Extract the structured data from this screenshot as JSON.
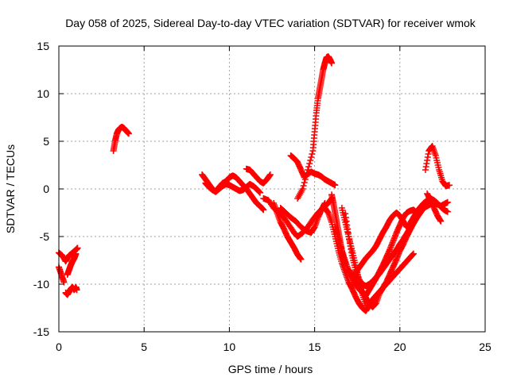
{
  "chart_data": {
    "type": "scatter",
    "title": "Day 058 of 2025, Sidereal Day-to-day VTEC variation (SDTVAR) for receiver wmok",
    "xlabel": "GPS time / hours",
    "ylabel": "SDTVAR / TECUs",
    "xlim": [
      0,
      25
    ],
    "ylim": [
      -15,
      15
    ],
    "xticks": [
      0,
      5,
      10,
      15,
      20,
      25
    ],
    "yticks": [
      -15,
      -10,
      -5,
      0,
      5,
      10,
      15
    ],
    "xtick_labels": [
      "0",
      "5",
      "10",
      "15",
      "20",
      "25"
    ],
    "ytick_labels": [
      "-15",
      "-10",
      "-5",
      "0",
      "5",
      "10",
      "15"
    ],
    "grid": true,
    "legend": "none",
    "marker": "+",
    "color": "#ff0000",
    "series": [
      {
        "x": [
          0.0,
          0.2,
          0.4,
          0.6,
          0.8,
          1.0,
          1.1
        ],
        "y": [
          -6.7,
          -7.0,
          -7.6,
          -7.0,
          -6.7,
          -6.4,
          -6.2
        ]
      },
      {
        "x": [
          0.0,
          0.15,
          0.3
        ],
        "y": [
          -8.2,
          -9.0,
          -9.8
        ]
      },
      {
        "x": [
          0.4,
          0.5,
          0.6,
          0.7,
          0.8,
          0.9,
          1.0,
          1.05
        ],
        "y": [
          -10.9,
          -11.1,
          -10.8,
          -10.5,
          -10.3,
          -10.6,
          -10.3,
          -10.6
        ]
      },
      {
        "x": [
          0.5,
          0.6,
          0.7,
          0.8,
          0.9,
          1.0
        ],
        "y": [
          -9.0,
          -8.5,
          -8.0,
          -7.6,
          -7.3,
          -6.8
        ]
      },
      {
        "x": [
          3.2,
          3.3,
          3.4,
          3.5,
          3.6,
          3.7,
          3.8,
          3.9,
          4.0,
          4.1
        ],
        "y": [
          4.0,
          5.0,
          5.8,
          6.2,
          6.4,
          6.5,
          6.4,
          6.2,
          6.0,
          5.8
        ]
      },
      {
        "x": [
          8.4,
          8.6,
          8.8,
          9.0,
          9.2,
          9.4,
          9.6,
          9.8,
          10.0,
          10.2,
          10.4,
          10.6,
          10.8,
          11.0,
          11.2,
          11.4,
          11.6,
          11.8,
          12.0
        ],
        "y": [
          1.5,
          1.0,
          0.5,
          0.0,
          -0.3,
          0.2,
          0.6,
          0.8,
          1.2,
          1.4,
          1.2,
          0.8,
          0.4,
          0.0,
          -0.5,
          -1.0,
          -1.5,
          -1.8,
          -2.2
        ]
      },
      {
        "x": [
          8.6,
          8.8,
          9.0,
          9.2,
          9.4,
          9.6,
          9.8,
          10.0,
          10.2,
          10.4,
          10.6,
          10.8,
          11.0,
          11.2,
          11.4,
          11.6,
          11.8
        ],
        "y": [
          0.6,
          0.2,
          -0.1,
          -0.3,
          0.0,
          0.3,
          0.5,
          0.4,
          0.2,
          0.0,
          -0.2,
          -0.1,
          0.2,
          0.5,
          0.3,
          0.0,
          -0.4
        ]
      },
      {
        "x": [
          11.0,
          11.2,
          11.4,
          11.6,
          11.8,
          12.0,
          12.2,
          12.4
        ],
        "y": [
          2.1,
          2.0,
          1.6,
          1.2,
          0.8,
          0.6,
          1.0,
          1.5
        ]
      },
      {
        "x": [
          12.0,
          12.3,
          12.6,
          12.9,
          13.2,
          13.5,
          13.8,
          14.0,
          14.3,
          14.6,
          14.9,
          15.2,
          15.5,
          15.8,
          16.0
        ],
        "y": [
          -1.0,
          -1.2,
          -2.0,
          -2.5,
          -3.0,
          -3.8,
          -4.6,
          -5.0,
          -4.6,
          -4.0,
          -3.2,
          -2.5,
          -2.0,
          -1.5,
          -1.0
        ]
      },
      {
        "x": [
          12.6,
          12.8,
          13.0,
          13.2,
          13.4,
          13.6,
          13.8,
          14.0,
          14.2
        ],
        "y": [
          -1.5,
          -2.5,
          -3.5,
          -4.2,
          -5.0,
          -5.6,
          -6.2,
          -6.9,
          -7.4
        ]
      },
      {
        "x": [
          13.6,
          13.8,
          14.0,
          14.2,
          14.4,
          14.6,
          14.8,
          15.0,
          15.2,
          15.4,
          15.6,
          15.8,
          16.0,
          16.2
        ],
        "y": [
          3.5,
          3.2,
          2.8,
          2.0,
          1.2,
          1.6,
          1.8,
          1.6,
          1.5,
          1.3,
          1.0,
          0.8,
          0.6,
          0.4
        ]
      },
      {
        "x": [
          13.0,
          13.3,
          13.6,
          13.9,
          14.2,
          14.5,
          14.8,
          15.0,
          15.2,
          15.4,
          15.6
        ],
        "y": [
          -2.0,
          -2.5,
          -3.0,
          -3.4,
          -4.0,
          -4.4,
          -4.6,
          -4.0,
          -3.0,
          -2.2,
          -1.5
        ]
      },
      {
        "x": [
          14.0,
          14.3,
          14.6,
          14.9,
          15.0,
          15.1,
          15.2,
          15.3,
          15.4,
          15.5,
          15.6,
          15.7,
          15.8,
          15.9,
          16.0
        ],
        "y": [
          -1.0,
          0.0,
          2.0,
          4.0,
          6.0,
          8.0,
          9.5,
          10.5,
          11.5,
          12.5,
          13.2,
          13.8,
          13.9,
          13.6,
          13.2
        ]
      },
      {
        "x": [
          15.6,
          15.8,
          16.0,
          16.2,
          16.4,
          16.6,
          16.8,
          17.0,
          17.2,
          17.4,
          17.6,
          17.8,
          18.0,
          18.2,
          18.4,
          18.6,
          18.8,
          19.0,
          19.2,
          19.4,
          19.6,
          19.8,
          20.0,
          20.2,
          20.4,
          20.6,
          20.8,
          21.0,
          21.2
        ],
        "y": [
          -2.0,
          -2.5,
          -3.5,
          -5.0,
          -6.5,
          -7.8,
          -8.8,
          -9.8,
          -10.5,
          -11.3,
          -12.0,
          -12.5,
          -12.8,
          -12.3,
          -11.6,
          -11.2,
          -10.8,
          -10.4,
          -9.8,
          -9.0,
          -8.2,
          -7.4,
          -6.5,
          -5.8,
          -5.0,
          -4.3,
          -3.6,
          -3.0,
          -2.4
        ]
      },
      {
        "x": [
          16.2,
          16.4,
          16.6,
          16.8,
          17.0,
          17.2,
          17.4,
          17.6,
          17.8,
          18.0,
          18.2,
          18.4,
          18.6,
          18.8,
          19.0,
          19.2,
          19.4,
          19.6,
          19.8,
          20.0,
          20.2,
          20.4,
          20.6,
          20.8,
          21.0
        ],
        "y": [
          -4.0,
          -5.2,
          -6.5,
          -7.6,
          -8.6,
          -9.3,
          -10.0,
          -10.5,
          -10.9,
          -11.2,
          -10.6,
          -10.0,
          -9.4,
          -8.7,
          -8.0,
          -7.2,
          -6.4,
          -5.5,
          -4.6,
          -3.8,
          -3.0,
          -2.5,
          -2.3,
          -2.2,
          -2.5
        ]
      },
      {
        "x": [
          16.8,
          17.0,
          17.2,
          17.4,
          17.6,
          17.8,
          18.0,
          18.2,
          18.4,
          18.6,
          18.8,
          19.0,
          19.2,
          19.4,
          19.6,
          19.8,
          20.0,
          20.2,
          20.4,
          20.6,
          20.8,
          21.0,
          21.2,
          21.4,
          21.6,
          21.8,
          22.0,
          22.2,
          22.4,
          22.6,
          22.8
        ],
        "y": [
          -2.6,
          -5.0,
          -7.0,
          -8.5,
          -9.5,
          -10.0,
          -10.2,
          -10.0,
          -9.7,
          -9.3,
          -8.9,
          -8.4,
          -7.9,
          -7.4,
          -6.9,
          -6.4,
          -5.8,
          -5.3,
          -4.7,
          -4.1,
          -3.6,
          -3.0,
          -2.5,
          -2.0,
          -1.8,
          -1.6,
          -1.5,
          -1.6,
          -1.8,
          -1.6,
          -1.4
        ]
      },
      {
        "x": [
          17.0,
          17.2,
          17.4,
          17.6,
          17.8,
          18.0,
          18.2,
          18.4,
          18.6,
          18.8,
          19.0,
          19.2,
          19.4,
          19.6,
          19.8,
          20.0,
          20.2,
          20.4,
          20.6,
          20.8
        ],
        "y": [
          -8.5,
          -9.0,
          -9.6,
          -10.2,
          -10.8,
          -11.4,
          -12.0,
          -12.4,
          -12.0,
          -11.0,
          -10.4,
          -10.0,
          -9.6,
          -9.2,
          -8.8,
          -8.4,
          -8.0,
          -7.6,
          -7.2,
          -6.8
        ]
      },
      {
        "x": [
          17.4,
          17.6,
          17.8,
          18.0,
          18.2,
          18.4,
          18.6,
          18.8,
          19.0,
          19.2,
          19.4,
          19.6,
          19.8,
          20.0,
          20.2,
          20.4,
          20.6,
          20.8,
          21.0,
          21.2,
          21.4,
          21.6,
          21.8,
          22.0,
          22.2,
          22.4,
          22.6,
          22.8
        ],
        "y": [
          -8.8,
          -8.3,
          -7.8,
          -7.3,
          -6.9,
          -6.5,
          -6.0,
          -5.3,
          -4.6,
          -4.0,
          -3.3,
          -2.8,
          -2.5,
          -2.8,
          -3.4,
          -4.0,
          -3.6,
          -3.0,
          -2.4,
          -1.9,
          -1.5,
          -1.2,
          -1.0,
          -1.2,
          -1.5,
          -1.9,
          -2.2,
          -2.4
        ]
      },
      {
        "x": [
          21.5,
          21.7,
          21.9,
          22.1,
          22.3,
          22.5,
          22.7,
          22.9
        ],
        "y": [
          2.0,
          4.0,
          4.5,
          3.5,
          2.0,
          0.8,
          0.3,
          0.4
        ]
      },
      {
        "x": [
          21.6,
          21.8,
          22.0,
          22.2,
          22.4
        ],
        "y": [
          -0.5,
          -1.2,
          -2.0,
          -2.8,
          -3.4
        ]
      },
      {
        "x": [
          16.0,
          16.1,
          16.2,
          16.3,
          16.4,
          16.5,
          16.6,
          16.7,
          16.8
        ],
        "y": [
          -0.6,
          -1.5,
          -2.5,
          -3.5,
          -4.5,
          -5.5,
          -6.5,
          -7.2,
          -7.8
        ]
      },
      {
        "x": [
          16.6,
          16.8,
          17.0,
          17.2,
          17.4,
          17.6,
          17.8,
          18.0
        ],
        "y": [
          -2.0,
          -3.5,
          -5.0,
          -6.5,
          -8.0,
          -9.5,
          -11.0,
          -12.2
        ]
      }
    ]
  }
}
